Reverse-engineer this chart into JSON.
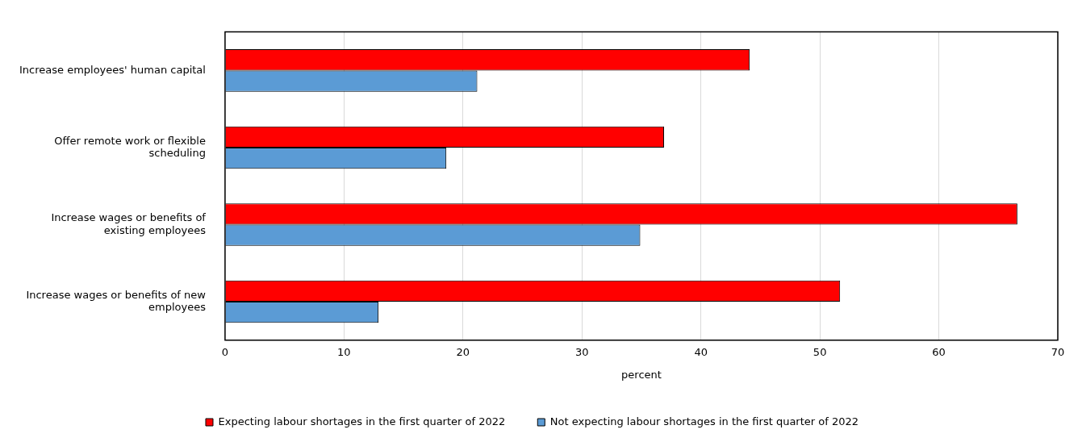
{
  "chart_data": {
    "type": "bar",
    "orientation": "horizontal",
    "xlabel": "percent",
    "categories": [
      "Increase employees' human capital",
      "Offer remote work or flexible scheduling",
      "Increase wages or benefits of existing employees",
      "Increase wages or benefits of new employees"
    ],
    "series": [
      {
        "name": "Expecting labour shortages in the first quarter of 2022",
        "color": "#ff0000",
        "values": [
          44.1,
          36.9,
          66.6,
          51.7
        ]
      },
      {
        "name": "Not expecting labour shortages in the first quarter of 2022",
        "color": "#5b9bd5",
        "values": [
          21.2,
          18.6,
          34.9,
          12.9
        ]
      }
    ],
    "xlim": [
      0,
      70
    ],
    "xticks": [
      0,
      10,
      20,
      30,
      40,
      50,
      60,
      70
    ],
    "grid": "x",
    "legend": "bottom"
  }
}
